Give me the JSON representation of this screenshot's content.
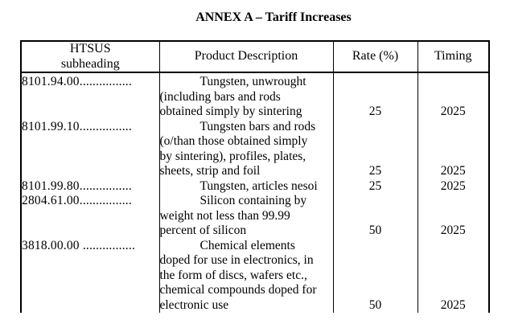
{
  "title": "ANNEX A – Tariff Increases",
  "table": {
    "headers": {
      "htsus_line1": "HTSUS",
      "htsus_line2": "subheading",
      "description": "Product Description",
      "rate": "Rate (%)",
      "timing": "Timing"
    },
    "rows": [
      {
        "htsus": "8101.94.00................",
        "description_lines": [
          "Tungsten, unwrought",
          "(including bars and rods",
          "obtained simply by sintering"
        ],
        "rate": "25",
        "timing": "2025"
      },
      {
        "htsus": "8101.99.10................",
        "description_lines": [
          "Tungsten bars and rods",
          "(o/than those obtained simply",
          "by sintering), profiles, plates,",
          "sheets, strip and foil"
        ],
        "rate": "25",
        "timing": "2025"
      },
      {
        "htsus": "8101.99.80................",
        "description_lines": [
          "Tungsten, articles nesoi"
        ],
        "rate": "25",
        "timing": "2025"
      },
      {
        "htsus": "2804.61.00................",
        "description_lines": [
          "Silicon containing by",
          "weight not less than 99.99",
          "percent of silicon"
        ],
        "rate": "50",
        "timing": "2025"
      },
      {
        "htsus": "3818.00.00 ................",
        "description_lines": [
          "Chemical elements",
          "doped for use in electronics, in",
          "the form of discs, wafers etc.,",
          "chemical compounds doped for",
          "electronic use"
        ],
        "rate": "50",
        "timing": "2025"
      }
    ]
  }
}
